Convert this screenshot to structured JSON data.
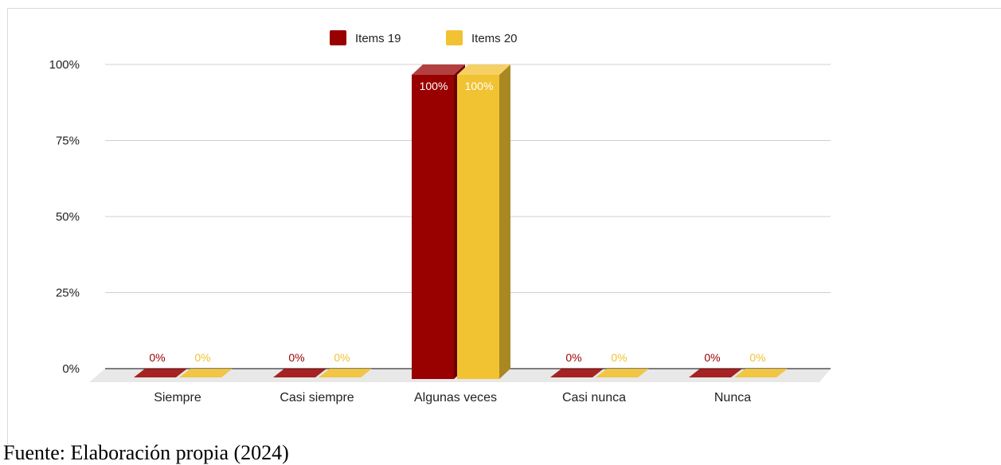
{
  "chart_data": {
    "type": "bar",
    "categories": [
      "Siempre",
      "Casi siempre",
      "Algunas veces",
      "Casi nunca",
      "Nunca"
    ],
    "series": [
      {
        "name": "Items 19",
        "values": [
          0,
          0,
          100,
          0,
          0
        ],
        "color": "#990000",
        "labels": [
          "0%",
          "0%",
          "100%",
          "0%",
          "0%"
        ]
      },
      {
        "name": "Items 20",
        "values": [
          0,
          0,
          100,
          0,
          0
        ],
        "color": "#f1c232",
        "labels": [
          "0%",
          "0%",
          "100%",
          "0%",
          "0%"
        ]
      }
    ],
    "yticks": [
      0,
      25,
      50,
      75,
      100
    ],
    "ytick_labels": [
      "0%",
      "25%",
      "50%",
      "75%",
      "100%"
    ],
    "ylim": [
      0,
      100
    ],
    "grid": true,
    "legend_position": "top-center",
    "style": "3d"
  },
  "source_note": "Fuente: Elaboración propia (2024)"
}
